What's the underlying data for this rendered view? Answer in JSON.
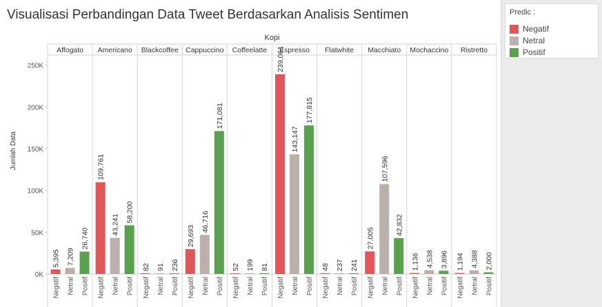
{
  "title": "Visualisasi Perbandingan Data Tweet Berdasarkan Analisis Sentimen",
  "legend": {
    "title": "Predic :",
    "items": [
      {
        "label": "Negatif",
        "color": "#e15759"
      },
      {
        "label": "Netral",
        "color": "#bab0ac"
      },
      {
        "label": "Positif",
        "color": "#59a14f"
      }
    ]
  },
  "chart_data": {
    "type": "bar",
    "title": "Visualisasi Perbandingan Data Tweet Berdasarkan Analisis Sentimen",
    "group_label": "Kopi",
    "ylabel": "Jumlah Data",
    "ylim": [
      0,
      250000
    ],
    "yticks": [
      0,
      50000,
      100000,
      150000,
      200000,
      250000
    ],
    "ytick_labels": [
      "0K",
      "50K",
      "100K",
      "150K",
      "200K",
      "250K"
    ],
    "categories": [
      "Negatif",
      "Netral",
      "Positif"
    ],
    "colors": {
      "Negatif": "#e15759",
      "Netral": "#bab0ac",
      "Positif": "#59a14f"
    },
    "groups": [
      {
        "name": "Affogato",
        "values": [
          5395,
          7209,
          26740
        ],
        "labels": [
          "5,395",
          "7,209",
          "26,740"
        ]
      },
      {
        "name": "Americano",
        "values": [
          109761,
          43241,
          58200
        ],
        "labels": [
          "109,761",
          "43,241",
          "58,200"
        ]
      },
      {
        "name": "Blackcoffee",
        "values": [
          82,
          91,
          236
        ],
        "labels": [
          "82",
          "91",
          "236"
        ]
      },
      {
        "name": "Cappuccino",
        "values": [
          29693,
          46716,
          171081
        ],
        "labels": [
          "29,693",
          "46,716",
          "171,081"
        ]
      },
      {
        "name": "Coffeelatte",
        "values": [
          52,
          199,
          81
        ],
        "labels": [
          "52",
          "199",
          "81"
        ]
      },
      {
        "name": "Espresso",
        "values": [
          239061,
          143147,
          177815
        ],
        "labels": [
          "239,061",
          "143,147",
          "177,815"
        ]
      },
      {
        "name": "Flatwhite",
        "values": [
          48,
          237,
          241
        ],
        "labels": [
          "48",
          "237",
          "241"
        ]
      },
      {
        "name": "Macchiato",
        "values": [
          27005,
          107596,
          42832
        ],
        "labels": [
          "27,005",
          "107,596",
          "42,832"
        ]
      },
      {
        "name": "Mochaccino",
        "values": [
          1136,
          4538,
          3896
        ],
        "labels": [
          "1,136",
          "4,538",
          "3,896"
        ]
      },
      {
        "name": "Ristretto",
        "values": [
          1194,
          4388,
          2000
        ],
        "labels": [
          "1,194",
          "4,388",
          "2,000"
        ]
      }
    ],
    "grid": false,
    "legend_position": "right"
  }
}
